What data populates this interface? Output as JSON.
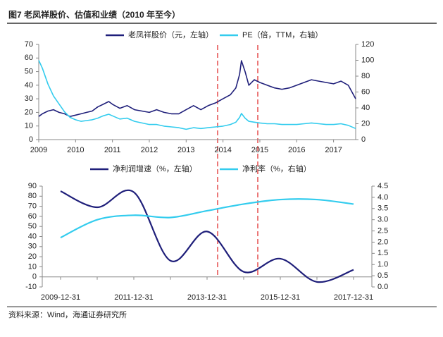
{
  "title": "图7  老凤祥股价、估值和业绩（2010 年至今）",
  "source": "资料来源：Wind，海通证券研究所",
  "chart_data": [
    {
      "type": "line",
      "x": [
        2009,
        2009.1,
        2009.25,
        2009.4,
        2009.55,
        2009.7,
        2009.85,
        2010,
        2010.15,
        2010.3,
        2010.45,
        2010.6,
        2010.75,
        2010.9,
        2011,
        2011.2,
        2011.4,
        2011.6,
        2011.8,
        2012,
        2012.2,
        2012.4,
        2012.6,
        2012.8,
        2013,
        2013.2,
        2013.4,
        2013.6,
        2013.8,
        2014,
        2014.2,
        2014.35,
        2014.45,
        2014.5,
        2014.6,
        2014.7,
        2014.85,
        2015,
        2015.2,
        2015.4,
        2015.6,
        2015.8,
        2016,
        2016.2,
        2016.4,
        2016.6,
        2016.8,
        2017,
        2017.2,
        2017.4,
        2017.6
      ],
      "series": [
        {
          "name": "老凤祥股价（元，左轴）",
          "color": "#1f1f7a",
          "values": [
            17,
            19,
            21,
            22,
            20,
            19,
            17,
            18,
            19,
            20,
            21,
            24,
            26,
            28,
            26,
            23,
            25,
            22,
            21,
            20,
            22,
            20,
            19,
            19,
            22,
            25,
            22,
            25,
            27,
            30,
            33,
            38,
            48,
            58,
            50,
            40,
            44,
            42,
            40,
            38,
            37,
            38,
            40,
            42,
            44,
            43,
            42,
            41,
            43,
            40,
            30
          ]
        },
        {
          "name": "PE（倍，TTM，右轴）",
          "color": "#33ccee",
          "axis": "y2",
          "values": [
            100,
            90,
            70,
            55,
            45,
            35,
            28,
            25,
            23,
            24,
            25,
            27,
            30,
            32,
            30,
            26,
            27,
            23,
            21,
            19,
            19,
            17,
            16,
            15,
            13,
            15,
            14,
            15,
            16,
            17,
            19,
            22,
            28,
            33,
            27,
            23,
            22,
            21,
            20,
            20,
            19,
            19,
            19,
            20,
            21,
            20,
            19,
            19,
            20,
            18,
            14
          ]
        }
      ],
      "xlim": [
        2009,
        2017.6
      ],
      "xticks": [
        2009,
        2010,
        2011,
        2012,
        2013,
        2014,
        2015,
        2016,
        2017
      ],
      "ylim": [
        0,
        70
      ],
      "yticks": [
        0,
        10,
        20,
        30,
        40,
        50,
        60,
        70
      ],
      "y2lim": [
        0,
        120
      ],
      "y2ticks": [
        0,
        20,
        40,
        60,
        80,
        100,
        120
      ],
      "grid": false
    },
    {
      "type": "line",
      "smooth": true,
      "categories": [
        "2009-12-31",
        null,
        "2011-12-31",
        null,
        "2013-12-31",
        null,
        "2015-12-31",
        null,
        "2017-12-31"
      ],
      "series": [
        {
          "name": "净利润增速（%，左轴）",
          "color": "#1f1f7a",
          "values": [
            85,
            69,
            84,
            16,
            45,
            5,
            18,
            -5,
            7
          ]
        },
        {
          "name": "净利率（%，右轴）",
          "color": "#33ccee",
          "axis": "y2",
          "values": [
            2.2,
            3.0,
            3.2,
            3.1,
            3.4,
            3.7,
            3.9,
            3.9,
            3.7
          ]
        }
      ],
      "ylim": [
        -10,
        90
      ],
      "yticks": [
        -10,
        0,
        10,
        20,
        30,
        40,
        50,
        60,
        70,
        80,
        90
      ],
      "y2lim": [
        0,
        4.5
      ],
      "y2ticks": [
        {
          "value": 0,
          "label": "0.0"
        },
        0.5,
        {
          "value": 1,
          "label": "1.0"
        },
        1.5,
        {
          "value": 2,
          "label": "2.0"
        },
        2.5,
        {
          "value": 3,
          "label": "3.0"
        },
        3.5,
        {
          "value": 4,
          "label": "4.0"
        },
        4.5
      ],
      "grid": false
    }
  ]
}
